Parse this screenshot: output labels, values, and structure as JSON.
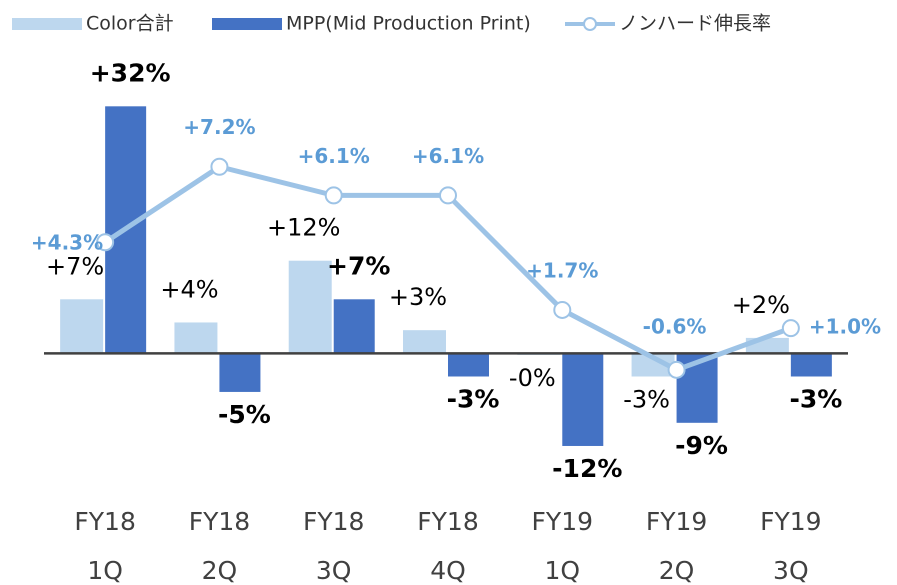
{
  "chart_data": {
    "type": "bar",
    "categories": [
      [
        "FY18",
        "1Q"
      ],
      [
        "FY18",
        "2Q"
      ],
      [
        "FY18",
        "3Q"
      ],
      [
        "FY18",
        "4Q"
      ],
      [
        "FY19",
        "1Q"
      ],
      [
        "FY19",
        "2Q"
      ],
      [
        "FY19",
        "3Q"
      ]
    ],
    "series": [
      {
        "name": "Color合計",
        "color": "#bdd7ee",
        "values": [
          7,
          4,
          12,
          3,
          -0.2,
          -3,
          2
        ],
        "value_labels": [
          "+7%",
          "+4%",
          "+12%",
          "+3%",
          "-0%",
          "-3%",
          "+2%"
        ]
      },
      {
        "name": "MPP(Mid Production Print)",
        "color": "#4472c4",
        "values": [
          32,
          -5,
          7,
          -3,
          -12,
          -9,
          -3
        ],
        "value_labels": [
          "+32%",
          "-5%",
          "+7%",
          "-3%",
          "-12%",
          "-9%",
          "-3%"
        ]
      },
      {
        "name": "ノンハード伸長率",
        "color": "#9dc3e6",
        "type": "line",
        "axis": "y2",
        "values": [
          4.3,
          7.2,
          6.1,
          6.1,
          1.7,
          -0.6,
          1.0
        ],
        "value_labels": [
          "+4.3%",
          "+7.2%",
          "+6.1%",
          "+6.1%",
          "+1.7%",
          "-0.6%",
          "+1.0%"
        ]
      }
    ],
    "ylim": [
      -19,
      38
    ],
    "y2lim": [
      -5.6,
      11.3
    ],
    "legend": "top"
  }
}
